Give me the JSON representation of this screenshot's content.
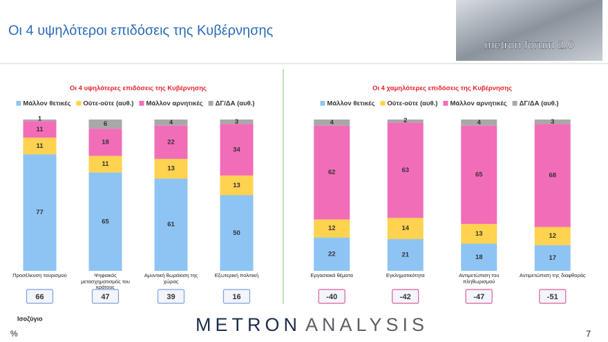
{
  "header": {
    "title": "Οι 4 υψηλότεροι επιδόσεις της Κυβέρνησης",
    "badge": "metron forum 2.0"
  },
  "chart_data": [
    {
      "type": "stacked-bar",
      "title": "Οι 4 υψηλότερες επιδόσεις της Κυβέρνησης",
      "categories": [
        "Προσέλκυση τουρισμού",
        "Ψηφιακός μετασχηματισμός του κράτους",
        "Αμυντική θωράκιση της χώρας",
        "Εξωτερική πολιτική"
      ],
      "series": [
        {
          "name": "Μάλλον θετικές",
          "color": "#8ec4f4",
          "values": [
            77,
            65,
            61,
            50
          ]
        },
        {
          "name": "Ούτε-ούτε  (αυθ.)",
          "color": "#ffd24f",
          "values": [
            11,
            11,
            13,
            13
          ]
        },
        {
          "name": "Μάλλον αρνητικές",
          "color": "#f26db8",
          "values": [
            11,
            18,
            22,
            34
          ]
        },
        {
          "name": "ΔΓ/ΔΑ (αυθ.)",
          "color": "#a8a8a8",
          "values": [
            1,
            6,
            4,
            3
          ]
        }
      ],
      "balance": [
        66,
        47,
        39,
        16
      ],
      "balance_color": "#7f9fdc"
    },
    {
      "type": "stacked-bar",
      "title": "Οι 4 χαμηλότερες επιδόσεις της Κυβέρνησης",
      "categories": [
        "Εργασιακά θέματα",
        "Εγκληματικότητα",
        "Αντιμετώπιση του πληθωρισμού",
        "Αντιμετώπιση της διαφθοράς"
      ],
      "series": [
        {
          "name": "Μάλλον θετικές",
          "color": "#8ec4f4",
          "values": [
            22,
            21,
            18,
            17
          ]
        },
        {
          "name": "Ούτε-ούτε  (αυθ.)",
          "color": "#ffd24f",
          "values": [
            12,
            14,
            13,
            12
          ]
        },
        {
          "name": "Μάλλον αρνητικές",
          "color": "#f26db8",
          "values": [
            62,
            63,
            65,
            68
          ]
        },
        {
          "name": "ΔΓ/ΔΑ (αυθ.)",
          "color": "#a8a8a8",
          "values": [
            4,
            2,
            4,
            3
          ]
        }
      ],
      "balance": [
        -40,
        -42,
        -47,
        -51
      ],
      "balance_color": "#e05a9a"
    }
  ],
  "footer": {
    "balance_label": "Ισοζύγιο",
    "unit": "%",
    "logo_left": "METRON",
    "logo_right": "ANALYSIS",
    "page": "7"
  }
}
